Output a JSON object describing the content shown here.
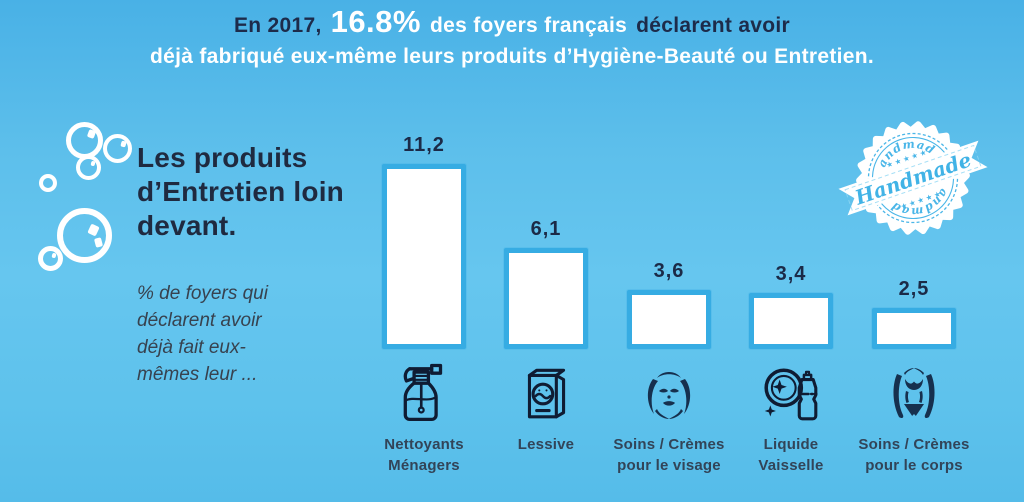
{
  "header": {
    "part1": "En 2017,",
    "highlight": "16.8%",
    "part2": "des foyers français",
    "part3": "déclarent avoir",
    "line2": "déjà fabriqué eux-même leurs produits d’Hygiène-Beauté ou Entretien."
  },
  "intro": {
    "title": "Les produits\nd’Entretien loin\ndevant.",
    "subtitle": "% de foyers qui\ndéclarent avoir\ndéjà fait eux-\nmêmes leur ..."
  },
  "badge": {
    "banner_text": "Handmade",
    "top_text": "Handmade",
    "bottom_text": "Handmade",
    "stars": "★ ★ ★ ★ ★"
  },
  "chart_data": {
    "type": "bar",
    "title": "Les produits d’Entretien loin devant.",
    "subtitle": "% de foyers qui déclarent avoir déjà fait eux-mêmes leur ...",
    "context": "En 2017, 16.8% des foyers français déclarent avoir déjà fabriqué eux-même leurs produits d’Hygiène-Beauté ou Entretien.",
    "categories": [
      "Nettoyants Ménagers",
      "Lessive",
      "Soins / Crèmes pour le visage",
      "Liquide Vaisselle",
      "Soins / Crèmes pour le corps"
    ],
    "values": [
      11.2,
      6.1,
      3.6,
      3.4,
      2.5
    ],
    "value_labels": [
      "11,2",
      "6,1",
      "3,6",
      "3,4",
      "2,5"
    ],
    "category_lines": [
      [
        "Nettoyants",
        "Ménagers"
      ],
      [
        "Lessive",
        ""
      ],
      [
        "Soins / Crèmes",
        "pour le visage"
      ],
      [
        "Liquide",
        "Vaisselle"
      ],
      [
        "Soins / Crèmes",
        "pour le corps"
      ]
    ],
    "icons": [
      "spray-bottle",
      "detergent-box",
      "face-care",
      "dish-soap",
      "body-care"
    ],
    "unit": "%",
    "ylim": [
      0,
      12
    ],
    "grid": false,
    "legend": "none",
    "bar_fill": "#ffffff",
    "bar_border": "#36ace3",
    "value_label_position": "above"
  },
  "colors": {
    "background_top": "#49b1e6",
    "background_mid": "#66c6ef",
    "dark_navy": "#1d2b4a",
    "label_slate": "#324458",
    "bar_border": "#36ace3",
    "badge_blue": "#4ab6e8",
    "white": "#ffffff"
  }
}
